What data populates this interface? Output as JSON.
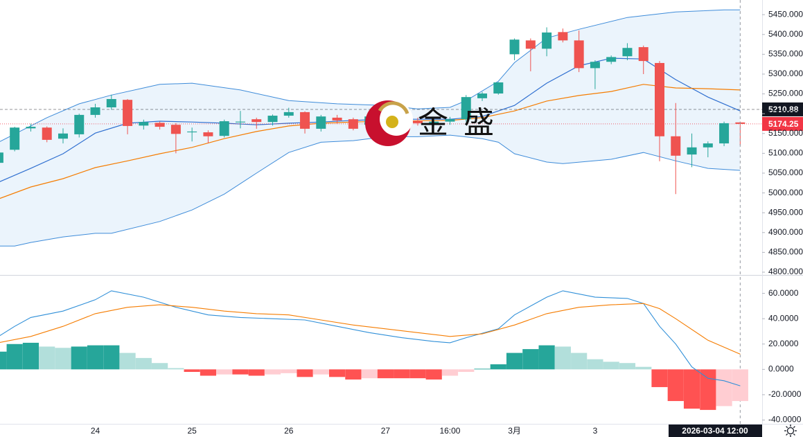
{
  "watermark": "金盛",
  "chart_data": [
    {
      "type": "candlestick",
      "xlim": [
        0.09,
        47.36
      ],
      "ylim": [
        4793,
        5487
      ],
      "categories": [
        null,
        null,
        null,
        null,
        null,
        null,
        "24",
        null,
        null,
        null,
        null,
        null,
        "25",
        null,
        null,
        null,
        null,
        null,
        "26",
        null,
        null,
        null,
        null,
        null,
        "27",
        null,
        null,
        null,
        "16:00",
        null,
        null,
        null,
        "3月",
        null,
        null,
        null,
        null,
        "3",
        null,
        null,
        null,
        null,
        null,
        null,
        null,
        null,
        null
      ],
      "crosshair_label": "2026-03-04   12:00",
      "yticks": [
        {
          "value": 4800,
          "label": "4800.000"
        },
        {
          "value": 4850,
          "label": "4850.000"
        },
        {
          "value": 4900,
          "label": "4900.000"
        },
        {
          "value": 4950,
          "label": "4950.000"
        },
        {
          "value": 5000,
          "label": "5000.000"
        },
        {
          "value": 5050,
          "label": "5050.000"
        },
        {
          "value": 5100,
          "label": "5100.000"
        },
        {
          "value": 5150,
          "label": "5150.000"
        },
        {
          "value": 5200,
          "label": "5200.000"
        },
        {
          "value": 5250,
          "label": "5250.000"
        },
        {
          "value": 5300,
          "label": "5300.000"
        },
        {
          "value": 5350,
          "label": "5350.000"
        },
        {
          "value": 5400,
          "label": "5400.000"
        },
        {
          "value": 5450,
          "label": "5450.000"
        }
      ],
      "up_color": "#26a69a",
      "down_color": "#ef5350",
      "open": [
        5076,
        5109,
        5163,
        5165,
        5137,
        5148,
        5197,
        5216,
        5235,
        5170,
        5177,
        5172,
        5153,
        5153,
        5144,
        5178,
        5186,
        5179,
        5195,
        5204,
        5162,
        5190,
        5186,
        5172,
        5190,
        5178,
        5182,
        5176,
        5180,
        5186,
        5239,
        5251,
        5350,
        5385,
        5364,
        5406,
        5385,
        5315,
        5331,
        5345,
        5368,
        5328,
        5143,
        5097,
        5115,
        5125,
        5178
      ],
      "high": [
        5110,
        5167,
        5175,
        5168,
        5163,
        5200,
        5225,
        5248,
        5237,
        5185,
        5180,
        5176,
        5165,
        5158,
        5185,
        5207,
        5190,
        5198,
        5215,
        5206,
        5197,
        5197,
        5190,
        5196,
        5200,
        5188,
        5190,
        5186,
        5192,
        5247,
        5255,
        5280,
        5390,
        5390,
        5418,
        5415,
        5410,
        5335,
        5347,
        5378,
        5372,
        5333,
        5227,
        5150,
        5130,
        5180,
        5180
      ],
      "low": [
        5060,
        5105,
        5155,
        5128,
        5125,
        5140,
        5190,
        5210,
        5148,
        5160,
        5160,
        5100,
        5130,
        5125,
        5140,
        5163,
        5162,
        5170,
        5190,
        5150,
        5155,
        5175,
        5158,
        5168,
        5170,
        5165,
        5170,
        5168,
        5172,
        5180,
        5232,
        5248,
        5335,
        5307,
        5345,
        5380,
        5305,
        5262,
        5325,
        5335,
        5300,
        5080,
        4997,
        5065,
        5090,
        5118,
        5120
      ],
      "close": [
        5102,
        5165,
        5167,
        5134,
        5150,
        5197,
        5216,
        5237,
        5169,
        5179,
        5167,
        5149,
        5155,
        5143,
        5181,
        5180,
        5179,
        5195,
        5204,
        5162,
        5193,
        5183,
        5162,
        5193,
        5178,
        5182,
        5176,
        5180,
        5186,
        5242,
        5251,
        5279,
        5387,
        5364,
        5405,
        5385,
        5315,
        5331,
        5343,
        5366,
        5333,
        5143,
        5094,
        5115,
        5125,
        5176,
        5174.25
      ],
      "bands": {
        "color": "#3d8bd9",
        "fill": "#e6f1fb",
        "upper": {
          "x": [
            0,
            3,
            5,
            7,
            10,
            12,
            15,
            18,
            21,
            24,
            26,
            28,
            29,
            31,
            32,
            34,
            36,
            39,
            42,
            45,
            46
          ],
          "values": [
            5128,
            5190,
            5225,
            5247,
            5274,
            5277,
            5260,
            5233,
            5225,
            5221,
            5212,
            5216,
            5233,
            5282,
            5329,
            5391,
            5413,
            5443,
            5457,
            5462,
            5462
          ]
        },
        "lower": {
          "x": [
            0,
            1,
            2,
            4,
            6,
            7,
            10,
            12,
            14,
            16,
            18,
            20,
            22,
            24,
            26,
            28,
            30,
            31,
            32,
            34,
            35,
            38,
            40,
            42,
            44,
            46
          ],
          "values": [
            4866,
            4866,
            4875,
            4889,
            4898,
            4898,
            4928,
            4957,
            4997,
            5050,
            5102,
            5128,
            5132,
            5142,
            5142,
            5146,
            5137,
            5128,
            5099,
            5078,
            5074,
            5085,
            5102,
            5081,
            5062,
            5057
          ]
        }
      },
      "lines": [
        {
          "color": "#2f6fd0",
          "x": [
            0,
            2,
            4,
            6,
            8,
            10,
            12,
            14,
            16,
            18,
            20,
            22,
            24,
            28,
            30,
            32,
            34,
            36,
            38,
            40,
            42,
            44,
            46
          ],
          "values": [
            5027,
            5062,
            5099,
            5151,
            5176,
            5181,
            5179,
            5176,
            5172,
            5176,
            5179,
            5183,
            5186,
            5186,
            5193,
            5221,
            5277,
            5321,
            5340,
            5338,
            5286,
            5242,
            5207
          ]
        },
        {
          "color": "#f57c00",
          "x": [
            0,
            2,
            4,
            6,
            8,
            10,
            12,
            14,
            16,
            18,
            20,
            22,
            24,
            28,
            30,
            32,
            34,
            36,
            38,
            40,
            42,
            44,
            46
          ],
          "values": [
            4985,
            5015,
            5036,
            5064,
            5081,
            5099,
            5115,
            5137,
            5155,
            5169,
            5176,
            5179,
            5181,
            5183,
            5190,
            5207,
            5232,
            5246,
            5256,
            5274,
            5265,
            5263,
            5260
          ]
        }
      ],
      "price_lines": [
        {
          "value": 5210.88,
          "color": "#131722"
        },
        {
          "value": 5174.25,
          "color": "#f23645"
        }
      ]
    },
    {
      "type": "macd",
      "ylim": [
        -43,
        74
      ],
      "yticks": [
        {
          "value": -40,
          "label": "-40.0000"
        },
        {
          "value": -20,
          "label": "-20.0000"
        },
        {
          "value": 0,
          "label": "0.0000"
        },
        {
          "value": 20,
          "label": "20.0000"
        },
        {
          "value": 40,
          "label": "40.0000"
        },
        {
          "value": 60,
          "label": "60.0000"
        }
      ],
      "histogram": {
        "colors": {
          "pos_rising": "#26a69a",
          "pos_falling": "#b2dfdb",
          "neg_falling": "#ff5252",
          "neg_rising": "#ffcdd2"
        },
        "values": [
          14,
          20,
          21,
          18,
          17,
          18,
          19,
          19,
          13,
          9,
          5,
          1,
          -2,
          -5,
          -4,
          -4,
          -5,
          -4,
          -3,
          -6,
          -4,
          -6,
          -8,
          -7,
          -7,
          -7,
          -7,
          -8,
          -5,
          -2,
          0.5,
          4,
          13,
          16,
          19,
          18,
          13,
          8,
          6,
          5,
          2,
          -14,
          -25,
          -31,
          -32,
          -29,
          -25
        ]
      },
      "lines": [
        {
          "color": "#2f8fd8",
          "x": [
            0,
            1,
            2,
            4,
            6,
            7,
            9,
            10,
            11,
            13,
            15,
            17,
            19,
            21,
            23,
            25,
            27,
            28,
            29,
            31,
            32,
            34,
            35,
            37,
            39,
            40,
            41,
            42,
            43,
            44,
            45,
            46
          ],
          "values": [
            26,
            34,
            41,
            46,
            55,
            62,
            57,
            53,
            49,
            43,
            41,
            40,
            39,
            34,
            29,
            25,
            22,
            21,
            25,
            32,
            43,
            57,
            62,
            57,
            56,
            52,
            34,
            20,
            2,
            -7,
            -9,
            -13
          ]
        },
        {
          "color": "#f57c00",
          "x": [
            0,
            2,
            4,
            6,
            8,
            10,
            12,
            14,
            16,
            18,
            20,
            22,
            24,
            26,
            28,
            30,
            32,
            34,
            36,
            38,
            40,
            41,
            42,
            44,
            46
          ],
          "values": [
            21,
            26,
            34,
            44,
            49,
            51,
            49,
            46,
            44,
            43,
            39,
            35,
            32,
            29,
            26,
            28,
            35,
            44,
            49,
            51,
            52,
            48,
            40,
            23,
            12
          ]
        }
      ]
    }
  ]
}
